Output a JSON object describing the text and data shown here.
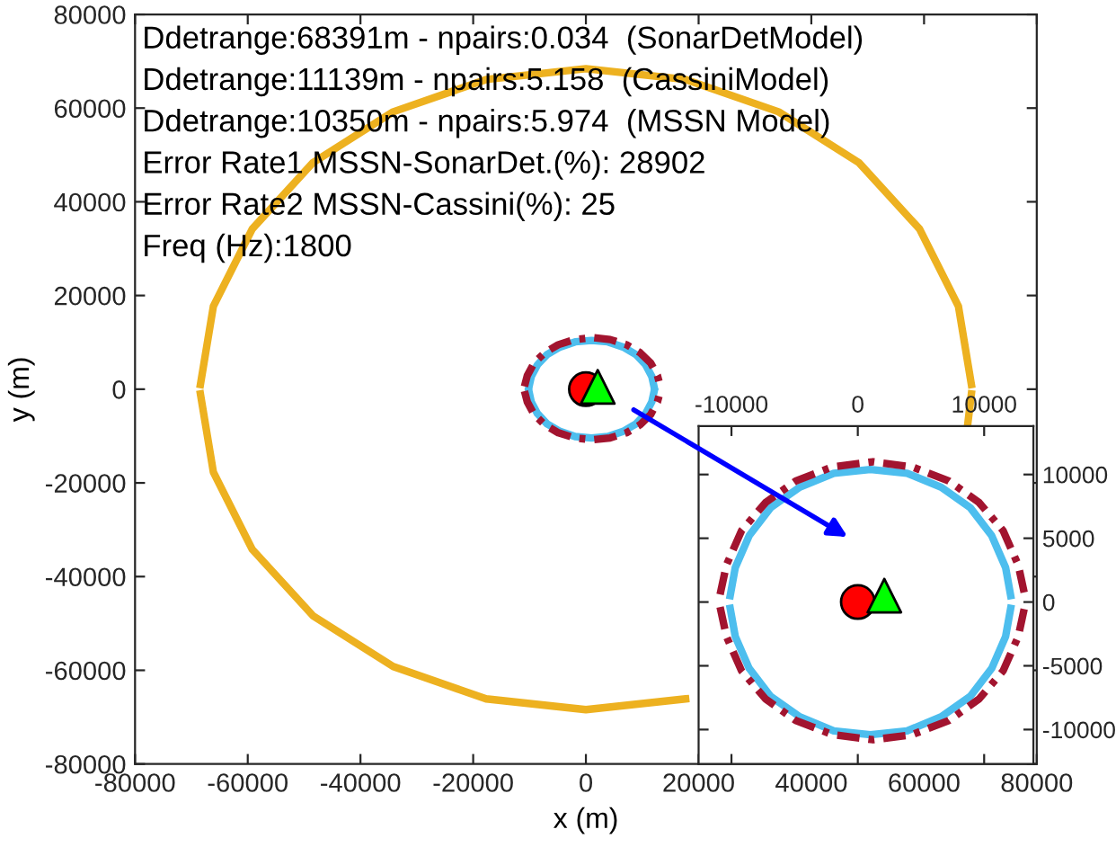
{
  "chart_data": [
    {
      "type": "line",
      "xlabel": "x (m)",
      "ylabel": "y (m)",
      "xlim": [
        -80000,
        80000
      ],
      "ylim": [
        -80000,
        80000
      ],
      "xticks": [
        -80000,
        -60000,
        -40000,
        -20000,
        0,
        20000,
        40000,
        60000,
        80000
      ],
      "yticks": [
        -80000,
        -60000,
        -40000,
        -20000,
        0,
        20000,
        40000,
        60000,
        80000
      ],
      "annotations": [
        "Ddetrange:68391m - npairs:0.034  (SonarDetModel)",
        "Ddetrange:11139m - npairs:5.158  (CassiniModel)",
        "Ddetrange:10350m - npairs:5.974  (MSSN Model)",
        "Error Rate1 MSSN-SonarDet.(%): 28902",
        "Error Rate2 MSSN-Cassini(%): 25",
        "Freq (Hz):1800"
      ],
      "series": [
        {
          "color": "#edb120",
          "line_style": "solid",
          "x": [
            -68400,
            -66100,
            -59200,
            -48400,
            -34200,
            -17700,
            0,
            17700,
            34200,
            48400,
            59200,
            66100,
            68400
          ],
          "values": [
            1000,
            17700,
            34200,
            48400,
            59200,
            66100,
            68400,
            66100,
            59200,
            48400,
            34200,
            17700,
            1000
          ]
        },
        {
          "color": "#edb120",
          "line_style": "solid",
          "x": [
            -68400,
            -66100,
            -59200,
            -48400,
            -34200,
            -17700,
            0,
            17700,
            34200,
            48400,
            59200,
            66100,
            67800,
            68400
          ],
          "values": [
            -1000,
            -17700,
            -34200,
            -48400,
            -59200,
            -66100,
            -68400,
            -66100,
            null,
            null,
            null,
            null,
            -7000,
            -1000
          ]
        },
        {
          "color": "#4dbeee",
          "line_style": "solid",
          "x": [
            -10100,
            -9700,
            -8600,
            -6900,
            -4600,
            -1900,
            1000,
            3900,
            6600,
            8900,
            10600,
            11700,
            12100
          ],
          "values": [
            500,
            2700,
            5200,
            7400,
            9000,
            10100,
            10400,
            10100,
            9000,
            7400,
            5200,
            2700,
            500
          ]
        },
        {
          "color": "#4dbeee",
          "line_style": "solid",
          "x": [
            -10100,
            -9700,
            -8600,
            -6900,
            -4600,
            -1900,
            1000,
            3900,
            6600,
            8900,
            10600,
            11700,
            12100
          ],
          "values": [
            -500,
            -2700,
            -5200,
            -7400,
            -9000,
            -10100,
            -10400,
            -10100,
            -9000,
            -7400,
            -5200,
            -2700,
            -500
          ]
        },
        {
          "color": "#a2142f",
          "line_style": "dashdot",
          "x": [
            -10900,
            -10400,
            -9200,
            -7300,
            -4900,
            -2000,
            1200,
            4300,
            7200,
            9600,
            11500,
            12700,
            13200
          ],
          "values": [
            600,
            2900,
            5600,
            7800,
            9500,
            10600,
            11000,
            10600,
            9500,
            7800,
            5600,
            2900,
            600
          ]
        },
        {
          "color": "#a2142f",
          "line_style": "dashdot",
          "x": [
            -10900,
            -10400,
            -9200,
            -7300,
            -4900,
            -2000,
            1200,
            4300,
            7200,
            9600,
            11500,
            12700,
            13200
          ],
          "values": [
            -400,
            -2700,
            -5400,
            -7600,
            -9300,
            -10400,
            -10800,
            -10400,
            -9300,
            -7600,
            -5400,
            -2700,
            -400
          ]
        },
        {
          "type": "scatter",
          "color": "#ff0000",
          "marker": "circle",
          "x": [
            0
          ],
          "values": [
            0
          ]
        },
        {
          "type": "scatter",
          "color": "#00ff00",
          "marker": "triangle",
          "x": [
            2100
          ],
          "values": [
            500
          ]
        }
      ]
    },
    {
      "type": "line",
      "xlim": [
        -12600,
        13900
      ],
      "ylim": [
        -12700,
        13800
      ],
      "xticks": [
        -10000,
        0,
        10000
      ],
      "yticks": [
        -10000,
        -5000,
        0,
        5000,
        10000
      ],
      "series": [
        {
          "color": "#4dbeee",
          "line_style": "solid",
          "x": [
            -10100,
            -9700,
            -8600,
            -6900,
            -4600,
            -1900,
            1000,
            3900,
            6600,
            8900,
            10600,
            11700,
            12100
          ],
          "values": [
            500,
            2700,
            5200,
            7400,
            9000,
            10100,
            10400,
            10100,
            9000,
            7400,
            5200,
            2700,
            500
          ]
        },
        {
          "color": "#4dbeee",
          "line_style": "solid",
          "x": [
            -10100,
            -9700,
            -8600,
            -6900,
            -4600,
            -1900,
            1000,
            3900,
            6600,
            8900,
            10600,
            11700,
            12100
          ],
          "values": [
            -500,
            -2700,
            -5200,
            -7400,
            -9000,
            -10100,
            -10400,
            -10100,
            -9000,
            -7400,
            -5200,
            -2700,
            -500
          ]
        },
        {
          "color": "#a2142f",
          "line_style": "dashdot",
          "x": [
            -10900,
            -10400,
            -9200,
            -7300,
            -4900,
            -2000,
            1200,
            4300,
            7200,
            9600,
            11500,
            12700,
            13200
          ],
          "values": [
            600,
            2900,
            5600,
            7800,
            9500,
            10600,
            11000,
            10600,
            9500,
            7800,
            5600,
            2900,
            600
          ]
        },
        {
          "color": "#a2142f",
          "line_style": "dashdot",
          "x": [
            -10900,
            -10400,
            -9200,
            -7300,
            -4900,
            -2000,
            1200,
            4300,
            7200,
            9600,
            11500,
            12700,
            13200
          ],
          "values": [
            -400,
            -2700,
            -5400,
            -7600,
            -9300,
            -10400,
            -10800,
            -10400,
            -9300,
            -7600,
            -5400,
            -2700,
            -400
          ]
        },
        {
          "type": "scatter",
          "color": "#ff0000",
          "marker": "circle",
          "x": [
            0
          ],
          "values": [
            0
          ]
        },
        {
          "type": "scatter",
          "color": "#00ff00",
          "marker": "triangle",
          "x": [
            2100
          ],
          "values": [
            500
          ]
        }
      ]
    }
  ]
}
